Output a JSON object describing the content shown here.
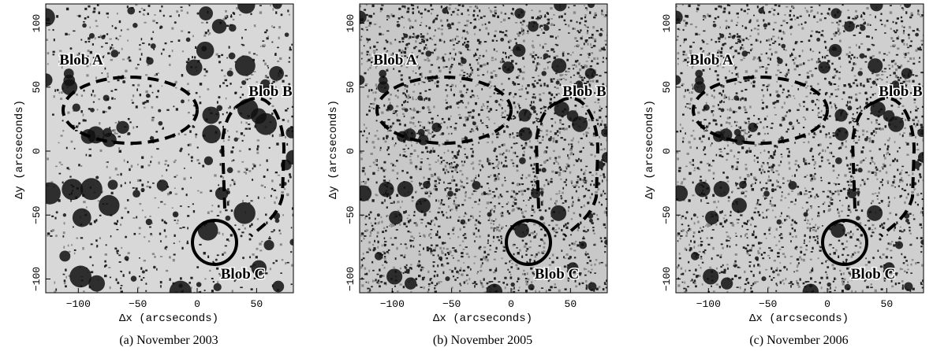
{
  "panels": [
    {
      "caption": "(a) November 2003",
      "x_label": "Δx (arcseconds)",
      "y_label": "Δy (arcseconds)",
      "blobs": [
        "Blob A",
        "Blob B",
        "Blob C"
      ]
    },
    {
      "caption": "(b) November 2005",
      "x_label": "Δx (arcseconds)",
      "y_label": "Δy (arcseconds)",
      "blobs": [
        "Blob A",
        "Blob B",
        "Blob C"
      ]
    },
    {
      "caption": "(c) November 2006",
      "x_label": "Δx (arcseconds)",
      "y_label": "Δy (arcseconds)",
      "blobs": [
        "Blob A",
        "Blob B",
        "Blob C"
      ]
    }
  ],
  "xticks": [
    {
      "value": -100,
      "label": "−100"
    },
    {
      "value": -50,
      "label": "−50"
    },
    {
      "value": 0,
      "label": "0"
    },
    {
      "value": 50,
      "label": "50"
    }
  ],
  "yticks": [
    {
      "value": -100,
      "label": "−100"
    },
    {
      "value": -50,
      "label": "−50"
    },
    {
      "value": 0,
      "label": "0"
    },
    {
      "value": 50,
      "label": "50"
    },
    {
      "value": 100,
      "label": "100"
    }
  ]
}
